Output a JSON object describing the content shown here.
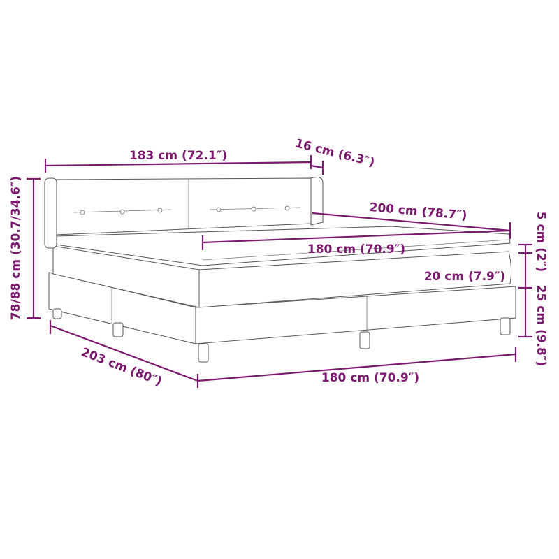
{
  "colors": {
    "dimension": "#7b1a6f",
    "outline": "#555555"
  },
  "dimensions": {
    "headboard_width": "183 cm (72.1″)",
    "headboard_depth": "16 cm (6.3″)",
    "bed_length": "200 cm (78.7″)",
    "mattress_width": "180 cm (70.9″)",
    "topper_height": "5 cm (2″)",
    "mattress_height": "20 cm (7.9″)",
    "base_height": "25 cm (9.8″)",
    "total_height": "78/88 cm (30.7/34.6″)",
    "total_length": "203 cm (80″)",
    "base_width": "180 cm (70.9″)"
  }
}
